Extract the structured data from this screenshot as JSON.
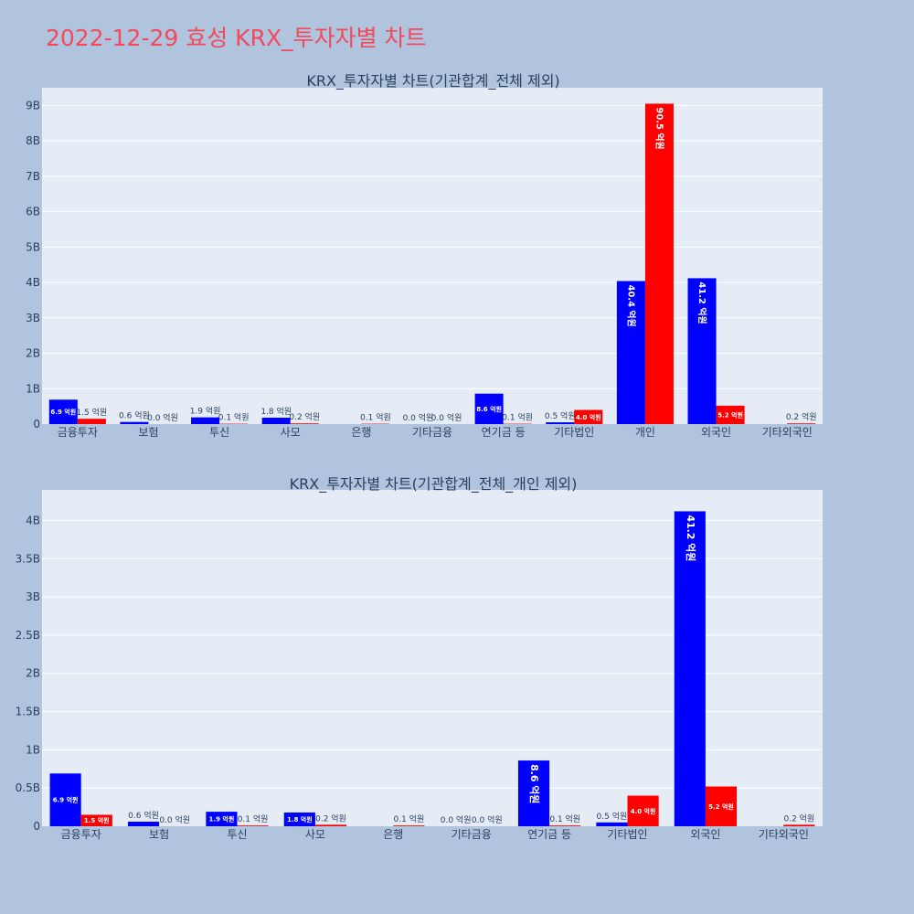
{
  "page": {
    "title": "2022-12-29 효성 KRX_투자자별 차트"
  },
  "colors": {
    "series_a": "#0000ff",
    "series_b": "#ff0000",
    "plot_bg": "#e5ecf6",
    "page_bg": "#b0c4de",
    "title": "#f2495c"
  },
  "chart_data": [
    {
      "type": "bar",
      "title": "KRX_투자자별 차트(기관합계_전체 제외)",
      "categories": [
        "금융투자",
        "보험",
        "투신",
        "사모",
        "은행",
        "기타금융",
        "연기금 등",
        "기타법인",
        "개인",
        "외국인",
        "기타외국인"
      ],
      "series": [
        {
          "values": [
            690000000,
            60000000,
            190000000,
            180000000,
            0,
            0,
            860000000,
            50000000,
            4040000000,
            4120000000,
            0
          ],
          "labels": [
            "6.9 억원",
            "0.6 억원",
            "1.9 억원",
            "1.8 억원",
            "",
            "0.0 억원",
            "8.6 억원",
            "0.5 억원",
            "40.4 억원",
            "41.2 억원",
            ""
          ]
        },
        {
          "values": [
            150000000,
            0,
            10000000,
            20000000,
            10000000,
            0,
            10000000,
            400000000,
            9050000000,
            520000000,
            20000000
          ],
          "labels": [
            "1.5 억원",
            "0.0 억원",
            "0.1 억원",
            "0.2 억원",
            "0.1 억원",
            "0.0 억원",
            "0.1 억원",
            "4.0 억원",
            "90.5 억원",
            "5.2 억원",
            "0.2 억원"
          ]
        }
      ],
      "ylim": [
        0,
        9500000000
      ],
      "yticks": [
        0,
        1000000000,
        2000000000,
        3000000000,
        4000000000,
        5000000000,
        6000000000,
        7000000000,
        8000000000,
        9000000000
      ],
      "ytick_labels": [
        "0",
        "1B",
        "2B",
        "3B",
        "4B",
        "5B",
        "6B",
        "7B",
        "8B",
        "9B"
      ],
      "grid": true,
      "legend": "none"
    },
    {
      "type": "bar",
      "title": "KRX_투자자별 차트(기관합계_전체_개인 제외)",
      "categories": [
        "금융투자",
        "보험",
        "투신",
        "사모",
        "은행",
        "기타금융",
        "연기금 등",
        "기타법인",
        "외국인",
        "기타외국인"
      ],
      "series": [
        {
          "values": [
            690000000,
            60000000,
            190000000,
            180000000,
            0,
            0,
            860000000,
            50000000,
            4120000000,
            0
          ],
          "labels": [
            "6.9 억원",
            "0.6 억원",
            "1.9 억원",
            "1.8 억원",
            "",
            "0.0 억원",
            "8.6 억원",
            "0.5 억원",
            "41.2 억원",
            ""
          ]
        },
        {
          "values": [
            150000000,
            0,
            10000000,
            20000000,
            10000000,
            0,
            10000000,
            400000000,
            520000000,
            20000000
          ],
          "labels": [
            "1.5 억원",
            "0.0 억원",
            "0.1 억원",
            "0.2 억원",
            "0.1 억원",
            "0.0 억원",
            "0.1 억원",
            "4.0 억원",
            "5.2 억원",
            "0.2 억원"
          ]
        }
      ],
      "ylim": [
        0,
        4400000000
      ],
      "yticks": [
        0,
        500000000,
        1000000000,
        1500000000,
        2000000000,
        2500000000,
        3000000000,
        3500000000,
        4000000000
      ],
      "ytick_labels": [
        "0",
        "0.5B",
        "1B",
        "1.5B",
        "2B",
        "2.5B",
        "3B",
        "3.5B",
        "4B"
      ],
      "grid": true,
      "legend": "none"
    }
  ]
}
